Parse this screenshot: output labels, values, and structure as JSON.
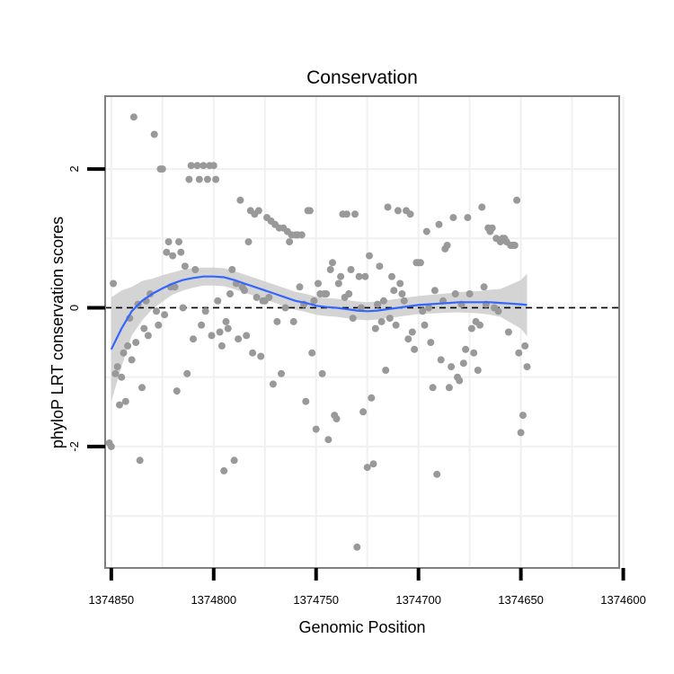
{
  "chart_data": {
    "type": "scatter",
    "title": "Conservation",
    "xlabel": "Genomic Position",
    "ylabel": "phyloP LRT conservation scores",
    "x_reversed": true,
    "xlim": [
      1374853,
      1374602
    ],
    "ylim": [
      -3.75,
      3.05
    ],
    "grid": true,
    "x_ticks": [
      {
        "value": 1374850,
        "label": "1374850"
      },
      {
        "value": 1374800,
        "label": "1374800"
      },
      {
        "value": 1374750,
        "label": "1374750"
      },
      {
        "value": 1374700,
        "label": "1374700"
      },
      {
        "value": 1374650,
        "label": "1374650"
      },
      {
        "value": 1374600,
        "label": "1374600"
      }
    ],
    "y_ticks": [
      {
        "value": -2,
        "label": "-2"
      },
      {
        "value": 0,
        "label": "0"
      },
      {
        "value": 2,
        "label": "2"
      }
    ],
    "reference_line": {
      "y": 0,
      "style": "dashed"
    },
    "colors": {
      "points": "#999999",
      "smooth": "#3366ff",
      "ribbon": "#cccccc",
      "grid": "#f0f0f0",
      "border": "#7f7f7f",
      "reference": "#000000"
    },
    "points": [
      [
        1374851,
        -1.95
      ],
      [
        1374850,
        -2.0
      ],
      [
        1374849,
        0.35
      ],
      [
        1374848,
        -0.95
      ],
      [
        1374847,
        -0.85
      ],
      [
        1374846,
        -1.4
      ],
      [
        1374845,
        -1.0
      ],
      [
        1374844,
        -0.65
      ],
      [
        1374843,
        -1.35
      ],
      [
        1374842,
        -0.55
      ],
      [
        1374841,
        -0.15
      ],
      [
        1374840,
        -0.75
      ],
      [
        1374839,
        2.75
      ],
      [
        1374838,
        -0.5
      ],
      [
        1374837,
        0.05
      ],
      [
        1374836,
        -2.2
      ],
      [
        1374835,
        -1.15
      ],
      [
        1374834,
        -0.3
      ],
      [
        1374833,
        0.1
      ],
      [
        1374832,
        -0.4
      ],
      [
        1374831,
        0.2
      ],
      [
        1374829,
        2.5
      ],
      [
        1374828,
        -0.05
      ],
      [
        1374827,
        -0.25
      ],
      [
        1374826,
        2.0
      ],
      [
        1374825,
        2.0
      ],
      [
        1374824,
        -0.1
      ],
      [
        1374823,
        0.8
      ],
      [
        1374822,
        0.95
      ],
      [
        1374821,
        0.3
      ],
      [
        1374820,
        0.75
      ],
      [
        1374819,
        0.3
      ],
      [
        1374818,
        -1.2
      ],
      [
        1374817,
        0.95
      ],
      [
        1374816,
        0.8
      ],
      [
        1374815,
        0.0
      ],
      [
        1374814,
        0.6
      ],
      [
        1374813,
        -0.95
      ],
      [
        1374812,
        1.85
      ],
      [
        1374811,
        2.05
      ],
      [
        1374810,
        -0.45
      ],
      [
        1374809,
        0.55
      ],
      [
        1374808,
        2.05
      ],
      [
        1374807,
        1.85
      ],
      [
        1374806,
        -0.25
      ],
      [
        1374805,
        2.05
      ],
      [
        1374804,
        -0.05
      ],
      [
        1374803,
        1.85
      ],
      [
        1374802,
        2.05
      ],
      [
        1374801,
        -0.4
      ],
      [
        1374800,
        2.05
      ],
      [
        1374799,
        1.85
      ],
      [
        1374798,
        0.1
      ],
      [
        1374797,
        -0.35
      ],
      [
        1374796,
        -0.55
      ],
      [
        1374795,
        -2.35
      ],
      [
        1374794,
        -0.2
      ],
      [
        1374793,
        -0.3
      ],
      [
        1374792,
        0.2
      ],
      [
        1374791,
        0.55
      ],
      [
        1374790,
        -2.2
      ],
      [
        1374789,
        0.35
      ],
      [
        1374788,
        -0.45
      ],
      [
        1374787,
        1.55
      ],
      [
        1374786,
        0.3
      ],
      [
        1374785,
        0.25
      ],
      [
        1374784,
        -0.4
      ],
      [
        1374783,
        0.95
      ],
      [
        1374782,
        1.4
      ],
      [
        1374781,
        -0.65
      ],
      [
        1374780,
        1.35
      ],
      [
        1374779,
        0.15
      ],
      [
        1374778,
        1.4
      ],
      [
        1374777,
        -0.7
      ],
      [
        1374776,
        0.1
      ],
      [
        1374775,
        0.1
      ],
      [
        1374774,
        1.3
      ],
      [
        1374773,
        0.15
      ],
      [
        1374772,
        1.25
      ],
      [
        1374771,
        -1.1
      ],
      [
        1374770,
        1.2
      ],
      [
        1374769,
        -0.2
      ],
      [
        1374768,
        1.15
      ],
      [
        1374767,
        -0.95
      ],
      [
        1374766,
        1.15
      ],
      [
        1374765,
        0.0
      ],
      [
        1374764,
        1.1
      ],
      [
        1374763,
        0.95
      ],
      [
        1374762,
        1.05
      ],
      [
        1374761,
        -0.2
      ],
      [
        1374760,
        1.05
      ],
      [
        1374759,
        1.05
      ],
      [
        1374758,
        0.3
      ],
      [
        1374757,
        1.05
      ],
      [
        1374756,
        0.05
      ],
      [
        1374755,
        -1.35
      ],
      [
        1374754,
        1.4
      ],
      [
        1374753,
        1.4
      ],
      [
        1374752,
        -0.65
      ],
      [
        1374751,
        0.1
      ],
      [
        1374750,
        -1.75
      ],
      [
        1374749,
        0.35
      ],
      [
        1374748,
        0.2
      ],
      [
        1374747,
        -0.95
      ],
      [
        1374746,
        0.2
      ],
      [
        1374745,
        0.2
      ],
      [
        1374744,
        -1.9
      ],
      [
        1374743,
        0.55
      ],
      [
        1374742,
        0.65
      ],
      [
        1374741,
        -1.55
      ],
      [
        1374740,
        -1.6
      ],
      [
        1374739,
        0.35
      ],
      [
        1374738,
        0.45
      ],
      [
        1374737,
        1.35
      ],
      [
        1374736,
        0.15
      ],
      [
        1374735,
        1.35
      ],
      [
        1374734,
        0.2
      ],
      [
        1374733,
        0.55
      ],
      [
        1374732,
        -0.15
      ],
      [
        1374731,
        1.35
      ],
      [
        1374730,
        -3.45
      ],
      [
        1374729,
        0.45
      ],
      [
        1374728,
        0.0
      ],
      [
        1374727,
        -1.5
      ],
      [
        1374726,
        0.45
      ],
      [
        1374725,
        -2.3
      ],
      [
        1374724,
        0.75
      ],
      [
        1374723,
        -1.3
      ],
      [
        1374722,
        -2.25
      ],
      [
        1374721,
        -0.3
      ],
      [
        1374720,
        0.05
      ],
      [
        1374719,
        0.6
      ],
      [
        1374718,
        -0.2
      ],
      [
        1374717,
        0.1
      ],
      [
        1374716,
        -0.9
      ],
      [
        1374715,
        1.45
      ],
      [
        1374714,
        -0.15
      ],
      [
        1374713,
        0.45
      ],
      [
        1374712,
        0.25
      ],
      [
        1374711,
        -0.25
      ],
      [
        1374710,
        1.4
      ],
      [
        1374709,
        0.35
      ],
      [
        1374708,
        0.2
      ],
      [
        1374707,
        0.1
      ],
      [
        1374706,
        1.4
      ],
      [
        1374705,
        -0.45
      ],
      [
        1374704,
        1.35
      ],
      [
        1374703,
        -0.35
      ],
      [
        1374702,
        -0.6
      ],
      [
        1374701,
        0.65
      ],
      [
        1374700,
        0.65
      ],
      [
        1374699,
        0.65
      ],
      [
        1374698,
        -0.05
      ],
      [
        1374697,
        -0.25
      ],
      [
        1374696,
        1.1
      ],
      [
        1374695,
        0.0
      ],
      [
        1374694,
        -0.5
      ],
      [
        1374693,
        -1.15
      ],
      [
        1374692,
        0.25
      ],
      [
        1374691,
        -2.4
      ],
      [
        1374690,
        1.2
      ],
      [
        1374689,
        -0.75
      ],
      [
        1374688,
        0.1
      ],
      [
        1374687,
        0.85
      ],
      [
        1374686,
        0.9
      ],
      [
        1374685,
        -1.15
      ],
      [
        1374684,
        -0.85
      ],
      [
        1374683,
        1.3
      ],
      [
        1374682,
        0.2
      ],
      [
        1374681,
        -1.0
      ],
      [
        1374680,
        -1.05
      ],
      [
        1374679,
        0.05
      ],
      [
        1374678,
        -0.8
      ],
      [
        1374677,
        -0.6
      ],
      [
        1374676,
        1.3
      ],
      [
        1374675,
        0.2
      ],
      [
        1374674,
        -0.3
      ],
      [
        1374673,
        -0.65
      ],
      [
        1374672,
        -0.2
      ],
      [
        1374671,
        -0.9
      ],
      [
        1374670,
        -0.25
      ],
      [
        1374669,
        1.45
      ],
      [
        1374668,
        0.3
      ],
      [
        1374667,
        0.05
      ],
      [
        1374666,
        1.15
      ],
      [
        1374665,
        1.1
      ],
      [
        1374664,
        1.15
      ],
      [
        1374663,
        0.0
      ],
      [
        1374662,
        1.0
      ],
      [
        1374661,
        -0.05
      ],
      [
        1374660,
        0.95
      ],
      [
        1374659,
        1.0
      ],
      [
        1374658,
        1.0
      ],
      [
        1374657,
        0.95
      ],
      [
        1374656,
        -0.35
      ],
      [
        1374655,
        0.9
      ],
      [
        1374654,
        0.9
      ],
      [
        1374653,
        0.9
      ],
      [
        1374652,
        1.55
      ],
      [
        1374651,
        -0.65
      ],
      [
        1374650,
        -1.8
      ],
      [
        1374649,
        -1.55
      ],
      [
        1374648,
        -0.55
      ],
      [
        1374647,
        -0.85
      ]
    ],
    "smooth_line": [
      [
        1374850,
        -0.6
      ],
      [
        1374845,
        -0.3
      ],
      [
        1374840,
        -0.05
      ],
      [
        1374835,
        0.1
      ],
      [
        1374830,
        0.2
      ],
      [
        1374825,
        0.28
      ],
      [
        1374820,
        0.35
      ],
      [
        1374815,
        0.4
      ],
      [
        1374810,
        0.43
      ],
      [
        1374805,
        0.45
      ],
      [
        1374800,
        0.45
      ],
      [
        1374795,
        0.44
      ],
      [
        1374790,
        0.4
      ],
      [
        1374785,
        0.35
      ],
      [
        1374780,
        0.3
      ],
      [
        1374775,
        0.25
      ],
      [
        1374770,
        0.2
      ],
      [
        1374765,
        0.15
      ],
      [
        1374760,
        0.1
      ],
      [
        1374755,
        0.07
      ],
      [
        1374750,
        0.03
      ],
      [
        1374745,
        0.01
      ],
      [
        1374740,
        0.0
      ],
      [
        1374735,
        -0.02
      ],
      [
        1374730,
        -0.04
      ],
      [
        1374725,
        -0.05
      ],
      [
        1374720,
        -0.04
      ],
      [
        1374715,
        -0.02
      ],
      [
        1374710,
        0.0
      ],
      [
        1374705,
        0.02
      ],
      [
        1374700,
        0.04
      ],
      [
        1374695,
        0.05
      ],
      [
        1374690,
        0.06
      ],
      [
        1374685,
        0.07
      ],
      [
        1374680,
        0.08
      ],
      [
        1374675,
        0.08
      ],
      [
        1374670,
        0.08
      ],
      [
        1374665,
        0.08
      ],
      [
        1374660,
        0.07
      ],
      [
        1374655,
        0.06
      ],
      [
        1374650,
        0.05
      ],
      [
        1374647,
        0.04
      ]
    ],
    "ribbon_halfwidth": [
      [
        1374850,
        0.75
      ],
      [
        1374840,
        0.35
      ],
      [
        1374830,
        0.22
      ],
      [
        1374820,
        0.16
      ],
      [
        1374805,
        0.13
      ],
      [
        1374790,
        0.13
      ],
      [
        1374775,
        0.13
      ],
      [
        1374760,
        0.13
      ],
      [
        1374745,
        0.13
      ],
      [
        1374730,
        0.13
      ],
      [
        1374715,
        0.13
      ],
      [
        1374700,
        0.13
      ],
      [
        1374685,
        0.14
      ],
      [
        1374670,
        0.16
      ],
      [
        1374660,
        0.2
      ],
      [
        1374650,
        0.35
      ],
      [
        1374647,
        0.45
      ]
    ]
  }
}
